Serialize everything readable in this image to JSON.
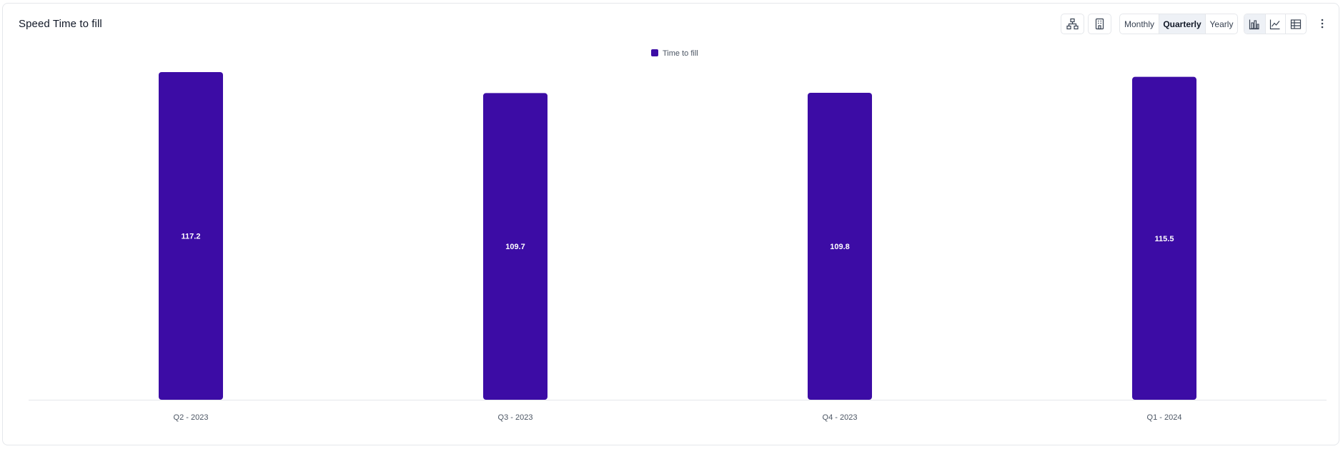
{
  "header": {
    "title": "Speed Time to fill",
    "toolbar_icons": [
      "hierarchy-icon",
      "building-icon"
    ],
    "period_options": [
      "Monthly",
      "Quarterly",
      "Yearly"
    ],
    "selected_period": "Quarterly",
    "view_icons": [
      "bar-chart-icon",
      "line-chart-icon",
      "table-icon"
    ],
    "selected_view": "bar-chart-icon",
    "menu_icon": "kebab-menu-icon"
  },
  "colors": {
    "bar": "#3c0ca5",
    "axis": "#e5e7eb",
    "label": "#ffffff",
    "tick": "#4b5563"
  },
  "chart_data": {
    "type": "bar",
    "categories": [
      "Q2 - 2023",
      "Q3 - 2023",
      "Q4 - 2023",
      "Q1 - 2024"
    ],
    "series": [
      {
        "name": "Time to fill",
        "values": [
          117.2,
          109.7,
          109.8,
          115.5
        ]
      }
    ],
    "ylim": [
      0,
      117.2
    ],
    "legend": "top-center",
    "grid": false,
    "data_labels": true
  }
}
